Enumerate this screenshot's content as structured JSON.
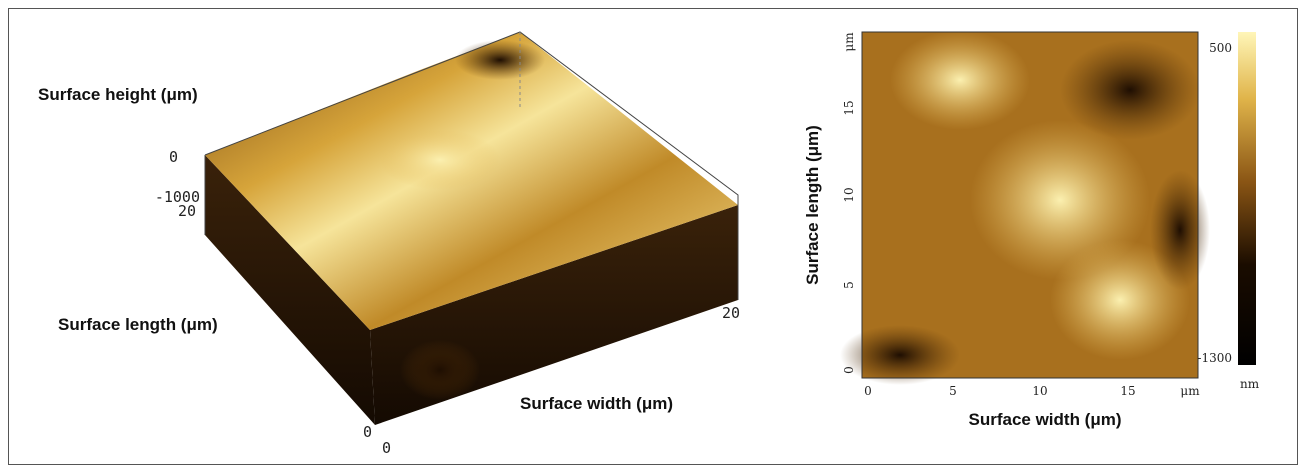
{
  "left_panel": {
    "height_label": "Surface height (μm)",
    "height_ticks": [
      "0",
      "-1000"
    ],
    "length_label": "Surface length (μm)",
    "length_ticks": [
      "20",
      "0"
    ],
    "width_label": "Surface width (μm)",
    "width_ticks": [
      "0",
      "20"
    ]
  },
  "right_panel": {
    "x_label": "Surface width (μm)",
    "x_ticks": [
      "0",
      "5",
      "10",
      "15",
      "μm"
    ],
    "y_label": "Surface length (μm)",
    "y_ticks": [
      "0",
      "5",
      "10",
      "15",
      "μm"
    ],
    "colorbar": {
      "max_label": "500",
      "min_label": "-1300",
      "unit": "nm"
    }
  }
}
